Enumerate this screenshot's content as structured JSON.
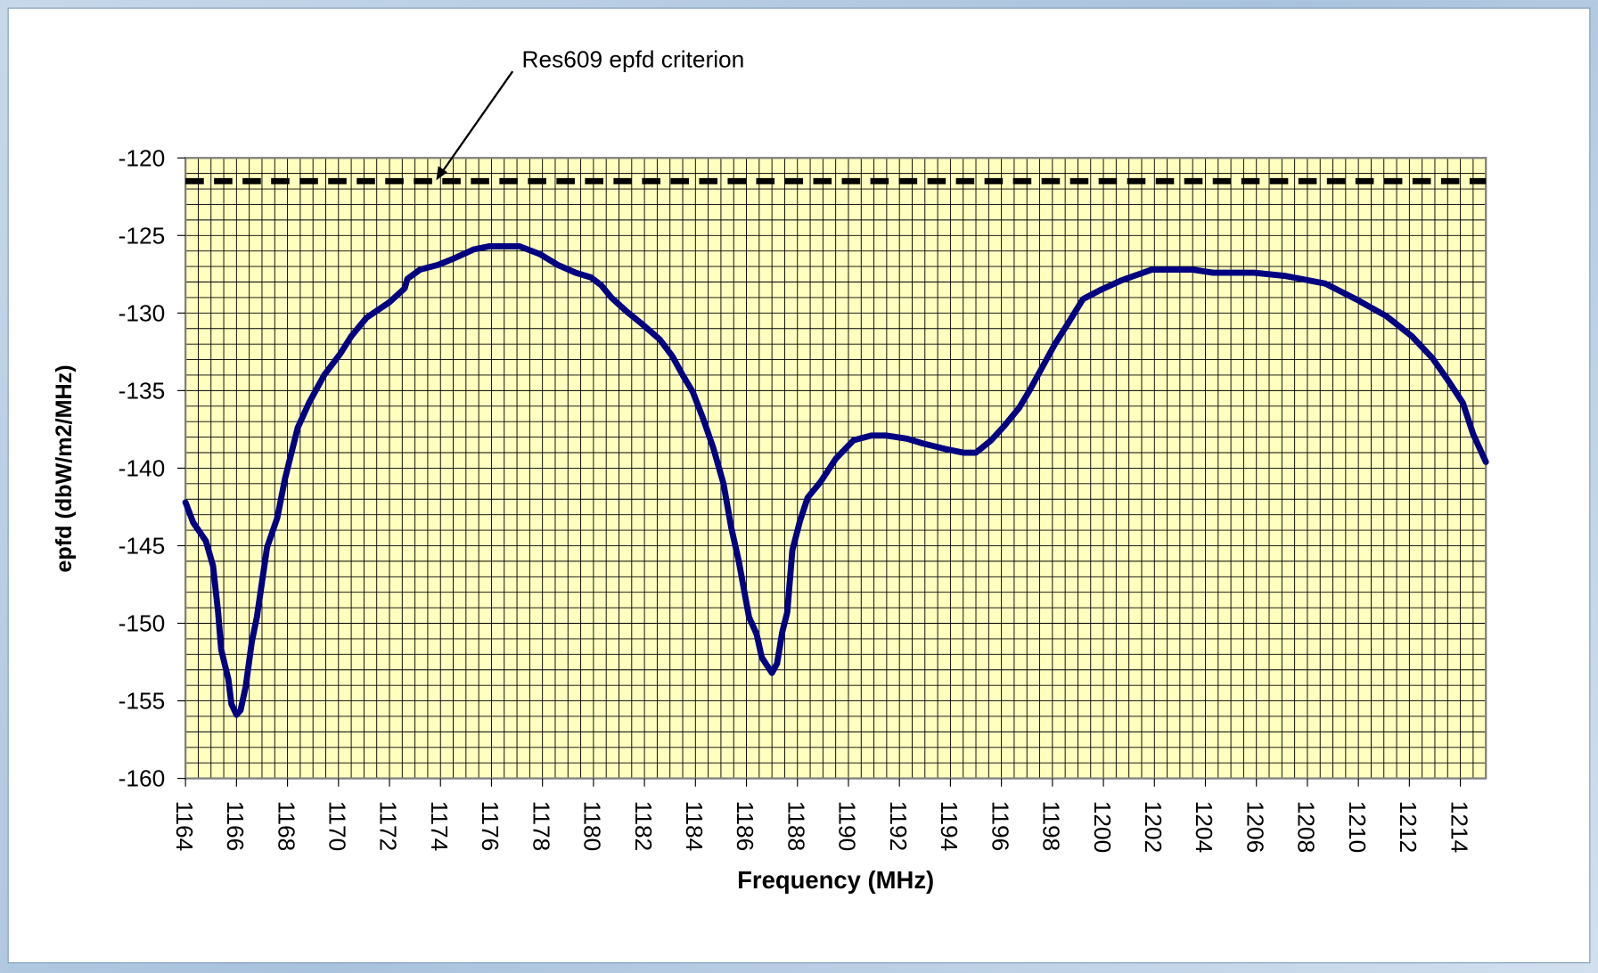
{
  "chart_data": {
    "type": "line",
    "xlabel": "Frequency (MHz)",
    "ylabel": "epfd (dbW/m2/MHz)",
    "xlim": [
      1164,
      1215
    ],
    "ylim": [
      -160,
      -120
    ],
    "xticks": [
      1164,
      1166,
      1168,
      1170,
      1172,
      1174,
      1176,
      1178,
      1180,
      1182,
      1184,
      1186,
      1188,
      1190,
      1192,
      1194,
      1196,
      1198,
      1200,
      1202,
      1204,
      1206,
      1208,
      1210,
      1212,
      1214
    ],
    "yticks": [
      -120,
      -125,
      -130,
      -135,
      -140,
      -145,
      -150,
      -155,
      -160
    ],
    "grid": true,
    "minor_grid": {
      "x": 0.5,
      "y": 1
    },
    "color": "#000080",
    "x": [
      1164,
      1164.3,
      1164.8,
      1165.08,
      1165.28,
      1165.4,
      1165.68,
      1165.8,
      1166,
      1166.16,
      1166.36,
      1166.6,
      1166.8,
      1167.2,
      1167.6,
      1167.9,
      1168.4,
      1168.84,
      1169.44,
      1170.08,
      1170.5,
      1171.1,
      1172,
      1172.6,
      1172.7,
      1173.2,
      1173.9,
      1174.5,
      1175.3,
      1175.9,
      1177.1,
      1177.9,
      1178.6,
      1179.3,
      1179.9,
      1180.3,
      1180.7,
      1181.3,
      1181.9,
      1182.6,
      1183.1,
      1183.5,
      1183.9,
      1184.3,
      1184.7,
      1185.1,
      1185.4,
      1185.7,
      1186.1,
      1186.4,
      1186.6,
      1187,
      1187.2,
      1187.4,
      1187.6,
      1187.8,
      1188.1,
      1188.4,
      1188.9,
      1189.5,
      1190.2,
      1190.9,
      1191.5,
      1192.3,
      1192.9,
      1193.9,
      1194.5,
      1195,
      1195.6,
      1196.1,
      1196.7,
      1197.1,
      1197.7,
      1198.1,
      1198.6,
      1199.2,
      1199.9,
      1200.7,
      1201.9,
      1203.5,
      1204.3,
      1205.9,
      1207.1,
      1208.7,
      1209.9,
      1211.1,
      1212.1,
      1212.9,
      1213.5,
      1214.1,
      1214.5,
      1215
    ],
    "values": [
      -142.2,
      -143.5,
      -144.7,
      -146.3,
      -149.3,
      -151.7,
      -153.6,
      -155.2,
      -155.9,
      -155.6,
      -154.1,
      -151.2,
      -149.6,
      -145.1,
      -143.2,
      -140.7,
      -137.4,
      -135.8,
      -134.0,
      -132.6,
      -131.5,
      -130.3,
      -129.3,
      -128.4,
      -127.8,
      -127.2,
      -126.9,
      -126.5,
      -125.9,
      -125.7,
      -125.7,
      -126.2,
      -126.9,
      -127.4,
      -127.7,
      -128.2,
      -129.0,
      -129.9,
      -130.7,
      -131.7,
      -132.8,
      -134.0,
      -135.1,
      -136.8,
      -138.7,
      -141.0,
      -143.8,
      -146.0,
      -149.6,
      -150.7,
      -152.2,
      -153.2,
      -152.6,
      -150.6,
      -149.3,
      -145.3,
      -143.4,
      -141.9,
      -140.9,
      -139.4,
      -138.2,
      -137.9,
      -137.9,
      -138.1,
      -138.4,
      -138.8,
      -139.0,
      -139.0,
      -138.2,
      -137.3,
      -136.1,
      -135.0,
      -133.2,
      -132.0,
      -130.7,
      -129.1,
      -128.5,
      -127.9,
      -127.2,
      -127.2,
      -127.4,
      -127.4,
      -127.6,
      -128.1,
      -129.1,
      -130.2,
      -131.5,
      -132.9,
      -134.3,
      -135.8,
      -137.8,
      -139.6
    ],
    "reference_line": {
      "label": "Res609 epfd criterion",
      "value": -121.5,
      "color": "#000000"
    }
  }
}
